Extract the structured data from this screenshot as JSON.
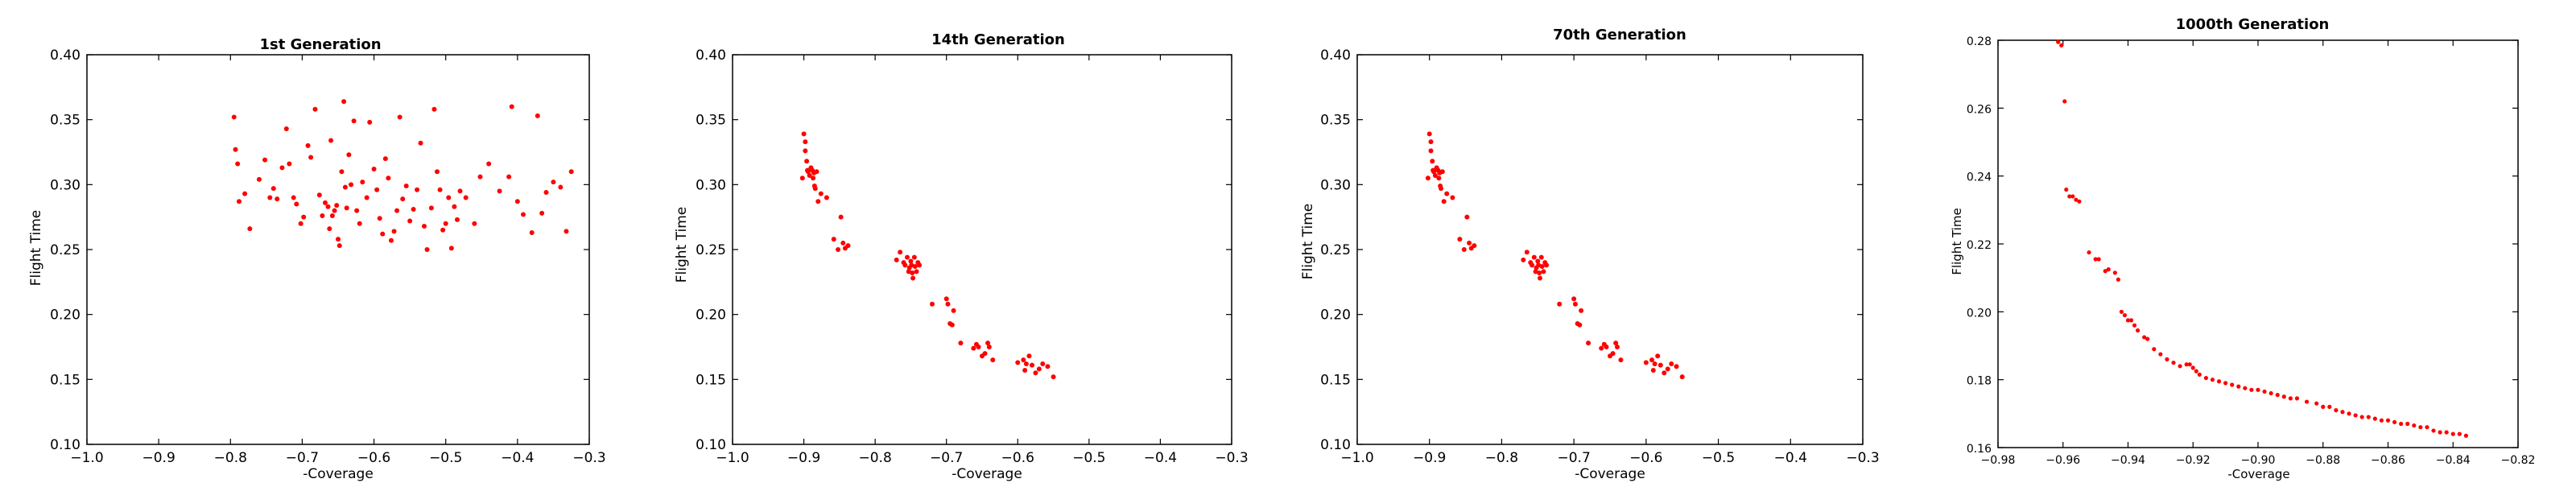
{
  "chart_data": [
    {
      "type": "scatter",
      "title": "1st Generation",
      "xlabel": "-Coverage",
      "ylabel": "Flight Time",
      "xlim": [
        -1.0,
        -0.3
      ],
      "ylim": [
        0.1,
        0.4
      ],
      "xticks": [
        "−1.0",
        "−0.9",
        "−0.8",
        "−0.7",
        "−0.6",
        "−0.5",
        "−0.4",
        "−0.3"
      ],
      "yticks": [
        "0.10",
        "0.15",
        "0.20",
        "0.25",
        "0.30",
        "0.35",
        "0.40"
      ],
      "color": "#ff0000",
      "x": [
        -0.795,
        -0.793,
        -0.79,
        -0.788,
        -0.78,
        -0.773,
        -0.76,
        -0.752,
        -0.745,
        -0.74,
        -0.735,
        -0.728,
        -0.722,
        -0.718,
        -0.712,
        -0.708,
        -0.702,
        -0.698,
        -0.692,
        -0.688,
        -0.682,
        -0.676,
        -0.672,
        -0.668,
        -0.664,
        -0.662,
        -0.66,
        -0.658,
        -0.655,
        -0.652,
        -0.65,
        -0.648,
        -0.645,
        -0.642,
        -0.64,
        -0.638,
        -0.635,
        -0.632,
        -0.628,
        -0.624,
        -0.62,
        -0.616,
        -0.61,
        -0.606,
        -0.6,
        -0.596,
        -0.592,
        -0.588,
        -0.584,
        -0.58,
        -0.576,
        -0.572,
        -0.568,
        -0.564,
        -0.56,
        -0.555,
        -0.55,
        -0.545,
        -0.54,
        -0.535,
        -0.53,
        -0.526,
        -0.52,
        -0.516,
        -0.512,
        -0.508,
        -0.504,
        -0.5,
        -0.496,
        -0.492,
        -0.488,
        -0.484,
        -0.48,
        -0.472,
        -0.46,
        -0.452,
        -0.44,
        -0.425,
        -0.412,
        -0.408,
        -0.4,
        -0.392,
        -0.38,
        -0.372,
        -0.366,
        -0.36,
        -0.35,
        -0.34,
        -0.332,
        -0.325
      ],
      "y": [
        0.352,
        0.327,
        0.316,
        0.287,
        0.293,
        0.266,
        0.304,
        0.319,
        0.29,
        0.297,
        0.289,
        0.313,
        0.343,
        0.316,
        0.29,
        0.285,
        0.27,
        0.275,
        0.33,
        0.321,
        0.358,
        0.292,
        0.276,
        0.286,
        0.283,
        0.266,
        0.334,
        0.276,
        0.28,
        0.284,
        0.258,
        0.253,
        0.31,
        0.364,
        0.298,
        0.282,
        0.323,
        0.3,
        0.349,
        0.28,
        0.27,
        0.302,
        0.29,
        0.348,
        0.312,
        0.296,
        0.274,
        0.262,
        0.32,
        0.305,
        0.257,
        0.264,
        0.28,
        0.352,
        0.289,
        0.299,
        0.272,
        0.281,
        0.296,
        0.332,
        0.268,
        0.25,
        0.282,
        0.358,
        0.31,
        0.296,
        0.265,
        0.27,
        0.29,
        0.251,
        0.283,
        0.273,
        0.295,
        0.29,
        0.27,
        0.306,
        0.316,
        0.295,
        0.306,
        0.36,
        0.287,
        0.277,
        0.263,
        0.353,
        0.278,
        0.294,
        0.302,
        0.298,
        0.264,
        0.31
      ],
      "_note": "values estimated visually"
    },
    {
      "type": "scatter",
      "title": "14th Generation",
      "xlabel": "-Coverage",
      "ylabel": "Flight Time",
      "xlim": [
        -1.0,
        -0.3
      ],
      "ylim": [
        0.1,
        0.4
      ],
      "xticks": [
        "−1.0",
        "−0.9",
        "−0.8",
        "−0.7",
        "−0.6",
        "−0.5",
        "−0.4",
        "−0.3"
      ],
      "yticks": [
        "0.10",
        "0.15",
        "0.20",
        "0.25",
        "0.30",
        "0.35",
        "0.40"
      ],
      "color": "#ff0000",
      "x": [
        -0.902,
        -0.9,
        -0.898,
        -0.898,
        -0.896,
        -0.895,
        -0.894,
        -0.892,
        -0.89,
        -0.888,
        -0.887,
        -0.886,
        -0.885,
        -0.884,
        -0.882,
        -0.88,
        -0.876,
        -0.868,
        -0.858,
        -0.852,
        -0.848,
        -0.845,
        -0.842,
        -0.838,
        -0.77,
        -0.765,
        -0.76,
        -0.758,
        -0.755,
        -0.753,
        -0.752,
        -0.75,
        -0.749,
        -0.748,
        -0.747,
        -0.745,
        -0.744,
        -0.742,
        -0.74,
        -0.738,
        -0.72,
        -0.7,
        -0.698,
        -0.695,
        -0.692,
        -0.69,
        -0.68,
        -0.662,
        -0.658,
        -0.655,
        -0.65,
        -0.646,
        -0.642,
        -0.64,
        -0.635,
        -0.6,
        -0.592,
        -0.59,
        -0.588,
        -0.584,
        -0.58,
        -0.575,
        -0.57,
        -0.565,
        -0.558,
        -0.55
      ],
      "y": [
        0.305,
        0.339,
        0.333,
        0.326,
        0.318,
        0.311,
        0.31,
        0.307,
        0.313,
        0.311,
        0.305,
        0.309,
        0.299,
        0.297,
        0.31,
        0.287,
        0.293,
        0.29,
        0.258,
        0.25,
        0.275,
        0.255,
        0.251,
        0.253,
        0.242,
        0.248,
        0.24,
        0.238,
        0.244,
        0.233,
        0.236,
        0.241,
        0.238,
        0.232,
        0.228,
        0.244,
        0.237,
        0.233,
        0.24,
        0.238,
        0.208,
        0.212,
        0.208,
        0.193,
        0.192,
        0.203,
        0.178,
        0.174,
        0.177,
        0.175,
        0.168,
        0.17,
        0.178,
        0.175,
        0.165,
        0.163,
        0.165,
        0.157,
        0.162,
        0.168,
        0.161,
        0.155,
        0.158,
        0.162,
        0.16,
        0.152
      ],
      "_note": "values estimated visually"
    },
    {
      "type": "scatter",
      "title": "70th Generation",
      "xlabel": "-Coverage",
      "ylabel": "Flight Time",
      "xlim": [
        -1.0,
        -0.3
      ],
      "ylim": [
        0.1,
        0.4
      ],
      "xticks": [
        "−1.0",
        "−0.9",
        "−0.8",
        "−0.7",
        "−0.6",
        "−0.5",
        "−0.4",
        "−0.3"
      ],
      "yticks": [
        "0.10",
        "0.15",
        "0.20",
        "0.25",
        "0.30",
        "0.35",
        "0.40"
      ],
      "color": "#ff0000",
      "x": [
        -0.902,
        -0.9,
        -0.898,
        -0.898,
        -0.896,
        -0.895,
        -0.894,
        -0.892,
        -0.89,
        -0.888,
        -0.887,
        -0.886,
        -0.885,
        -0.884,
        -0.882,
        -0.88,
        -0.876,
        -0.868,
        -0.858,
        -0.852,
        -0.848,
        -0.845,
        -0.842,
        -0.838,
        -0.77,
        -0.765,
        -0.76,
        -0.758,
        -0.755,
        -0.753,
        -0.752,
        -0.75,
        -0.749,
        -0.748,
        -0.747,
        -0.745,
        -0.744,
        -0.742,
        -0.74,
        -0.738,
        -0.72,
        -0.7,
        -0.698,
        -0.695,
        -0.692,
        -0.69,
        -0.68,
        -0.662,
        -0.658,
        -0.655,
        -0.65,
        -0.646,
        -0.642,
        -0.64,
        -0.635,
        -0.6,
        -0.592,
        -0.59,
        -0.588,
        -0.584,
        -0.58,
        -0.575,
        -0.57,
        -0.565,
        -0.558,
        -0.55
      ],
      "y": [
        0.305,
        0.339,
        0.333,
        0.326,
        0.318,
        0.311,
        0.31,
        0.307,
        0.313,
        0.311,
        0.305,
        0.309,
        0.299,
        0.297,
        0.31,
        0.287,
        0.293,
        0.29,
        0.258,
        0.25,
        0.275,
        0.255,
        0.251,
        0.253,
        0.242,
        0.248,
        0.24,
        0.238,
        0.244,
        0.233,
        0.236,
        0.241,
        0.238,
        0.232,
        0.228,
        0.244,
        0.237,
        0.233,
        0.24,
        0.238,
        0.208,
        0.212,
        0.208,
        0.193,
        0.192,
        0.203,
        0.178,
        0.174,
        0.177,
        0.175,
        0.168,
        0.17,
        0.178,
        0.175,
        0.165,
        0.163,
        0.165,
        0.157,
        0.162,
        0.168,
        0.161,
        0.155,
        0.158,
        0.162,
        0.16,
        0.152
      ],
      "_note": "values estimated visually"
    },
    {
      "type": "scatter",
      "title": "1000th Generation",
      "xlabel": "-Coverage",
      "ylabel": "Flight Time",
      "xlim": [
        -0.98,
        -0.82
      ],
      "ylim": [
        0.16,
        0.28
      ],
      "xticks": [
        "−0.98",
        "−0.96",
        "−0.94",
        "−0.92",
        "−0.90",
        "−0.88",
        "−0.86",
        "−0.84",
        "−0.82"
      ],
      "yticks": [
        "0.16",
        "0.18",
        "0.20",
        "0.22",
        "0.24",
        "0.26",
        "0.28"
      ],
      "color": "#ff0000",
      "x": [
        -0.9615,
        -0.9605,
        -0.9595,
        -0.959,
        -0.958,
        -0.957,
        -0.956,
        -0.955,
        -0.952,
        -0.95,
        -0.949,
        -0.947,
        -0.946,
        -0.944,
        -0.943,
        -0.942,
        -0.941,
        -0.94,
        -0.939,
        -0.938,
        -0.937,
        -0.935,
        -0.934,
        -0.932,
        -0.93,
        -0.928,
        -0.926,
        -0.924,
        -0.922,
        -0.921,
        -0.92,
        -0.919,
        -0.918,
        -0.916,
        -0.914,
        -0.912,
        -0.91,
        -0.908,
        -0.906,
        -0.904,
        -0.902,
        -0.9,
        -0.898,
        -0.896,
        -0.894,
        -0.892,
        -0.89,
        -0.888,
        -0.885,
        -0.882,
        -0.88,
        -0.878,
        -0.876,
        -0.874,
        -0.872,
        -0.87,
        -0.868,
        -0.866,
        -0.864,
        -0.862,
        -0.86,
        -0.858,
        -0.856,
        -0.854,
        -0.852,
        -0.85,
        -0.848,
        -0.846,
        -0.844,
        -0.842,
        -0.84,
        -0.838,
        -0.836
      ],
      "y": [
        0.2795,
        0.2785,
        0.262,
        0.236,
        0.234,
        0.234,
        0.233,
        0.2325,
        0.2175,
        0.2155,
        0.2155,
        0.212,
        0.2125,
        0.2115,
        0.2095,
        0.2,
        0.199,
        0.1975,
        0.1975,
        0.196,
        0.1945,
        0.1925,
        0.192,
        0.189,
        0.1875,
        0.186,
        0.185,
        0.184,
        0.1845,
        0.1845,
        0.1835,
        0.1825,
        0.1815,
        0.1805,
        0.18,
        0.1795,
        0.179,
        0.1785,
        0.178,
        0.1775,
        0.177,
        0.177,
        0.1765,
        0.176,
        0.1755,
        0.175,
        0.1745,
        0.1745,
        0.1735,
        0.173,
        0.172,
        0.172,
        0.171,
        0.1705,
        0.17,
        0.1695,
        0.169,
        0.169,
        0.1685,
        0.168,
        0.168,
        0.1675,
        0.167,
        0.167,
        0.1665,
        0.166,
        0.166,
        0.165,
        0.1645,
        0.1645,
        0.164,
        0.164,
        0.1635
      ],
      "_note": "values estimated visually"
    }
  ]
}
